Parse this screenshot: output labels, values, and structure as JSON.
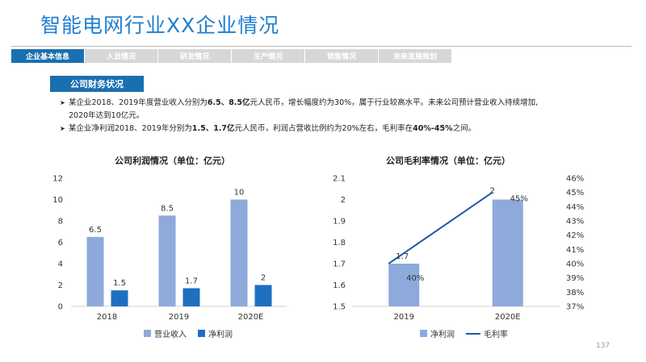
{
  "title": "智能电网行业XX企业情况",
  "tabs": [
    {
      "label": "企业基本信息",
      "active": true
    },
    {
      "label": "人员情况",
      "active": false
    },
    {
      "label": "研发情况",
      "active": false
    },
    {
      "label": "生产情况",
      "active": false
    },
    {
      "label": "销售情况",
      "active": false
    },
    {
      "label": "未来发展规划",
      "active": false
    }
  ],
  "section_label": "公司财务状况",
  "bullets": {
    "b1": {
      "t1": "某企业2018、2019年度营业收入分别为",
      "h1": "6.5、8.5亿",
      "t2": "元人民币，增长幅度约为30%，属于行业较高水平。未来公司预计营业收入持续增加,",
      "cont": "2020年达到10亿元。"
    },
    "b2": {
      "t1": "某企业净利润2018、2019年分别为",
      "h1": "1.5、1.7亿",
      "t2": "元人民币，利润占营收比例约为20%左右，毛利率在",
      "h2": "40%-45%",
      "t3": "之间。"
    }
  },
  "page_number": "137",
  "chart_data": [
    {
      "type": "bar",
      "title": "公司利润情况（单位：亿元）",
      "categories": [
        "2018",
        "2019",
        "2020E"
      ],
      "series": [
        {
          "name": "营业收入",
          "values": [
            6.5,
            8.5,
            10
          ],
          "color": "#8eaadb"
        },
        {
          "name": "净利润",
          "values": [
            1.5,
            1.7,
            2
          ],
          "color": "#1f6fc0"
        }
      ],
      "ylim": [
        0,
        12
      ],
      "yticks": [
        0,
        2,
        4,
        6,
        8,
        10,
        12
      ],
      "legend": "bottom",
      "grid": false
    },
    {
      "type": "bar",
      "title": "公司毛利率情况（单位：亿元）",
      "categories": [
        "2019",
        "2020E"
      ],
      "series": [
        {
          "name": "净利润",
          "kind": "bar",
          "values": [
            1.7,
            2
          ],
          "color": "#8eaadb",
          "axis": "left"
        },
        {
          "name": "毛利率",
          "kind": "line",
          "values": [
            0.4,
            0.45
          ],
          "labels": [
            "40%",
            "45%"
          ],
          "color": "#1f5aa8",
          "axis": "right"
        }
      ],
      "ylim": [
        1.5,
        2.1
      ],
      "yticks": [
        "1.5",
        "1.6",
        "1.7",
        "1.8",
        "1.9",
        "2",
        "2.1"
      ],
      "y2lim": [
        0.37,
        0.46
      ],
      "y2ticks": [
        "37%",
        "38%",
        "39%",
        "40%",
        "41%",
        "42%",
        "43%",
        "44%",
        "45%",
        "46%"
      ],
      "legend": "bottom",
      "grid": false
    }
  ]
}
